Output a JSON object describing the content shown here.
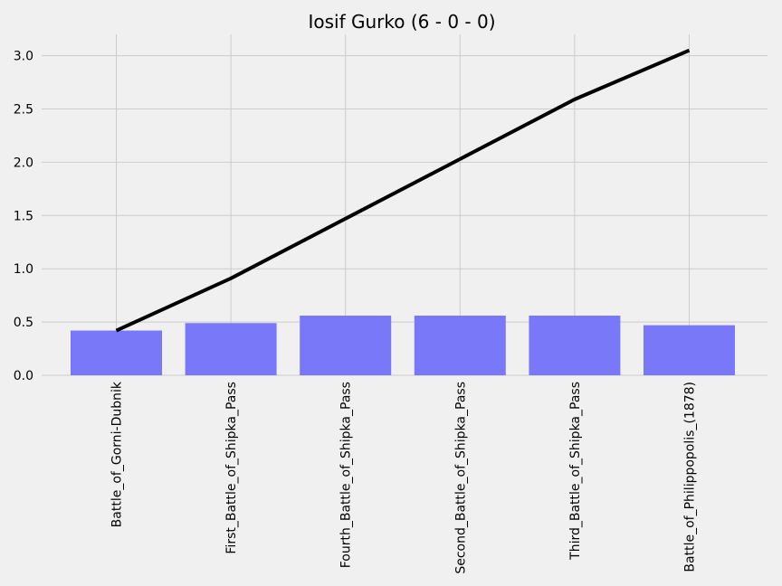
{
  "chart_data": {
    "type": "bar",
    "title": "Iosif Gurko (6 - 0 - 0)",
    "xlabel": "",
    "ylabel": "",
    "categories": [
      "Battle_of_Gorni-Dubnik",
      "First_Battle_of_Shipka_Pass",
      "Fourth_Battle_of_Shipka_Pass",
      "Second_Battle_of_Shipka_Pass",
      "Third_Battle_of_Shipka_Pass",
      "Battle_of_Philippopolis_(1878)"
    ],
    "series": [
      {
        "type": "bar",
        "values": [
          0.42,
          0.49,
          0.56,
          0.56,
          0.56,
          0.47
        ],
        "color": "#7878f8"
      },
      {
        "type": "line",
        "values": [
          0.42,
          0.91,
          1.47,
          2.03,
          2.59,
          3.05
        ],
        "color": "#000000"
      }
    ],
    "ylim": [
      0,
      3.2
    ],
    "yticks": [
      "0.0",
      "0.5",
      "1.0",
      "1.5",
      "2.0",
      "2.5",
      "3.0"
    ],
    "grid": true
  }
}
